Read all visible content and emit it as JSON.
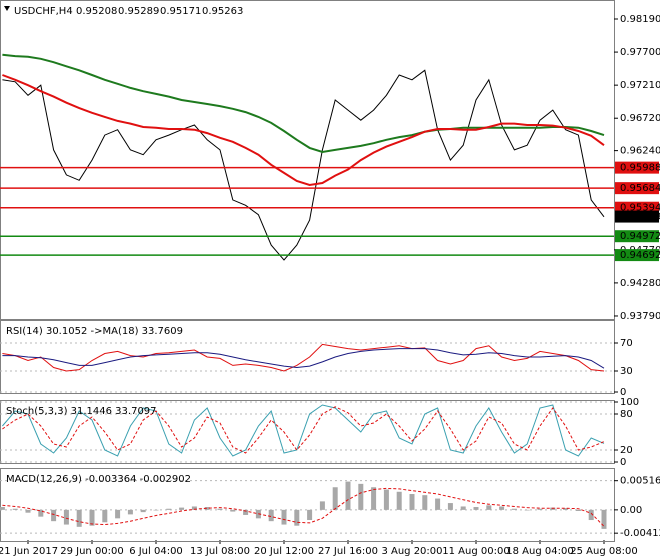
{
  "chart_data": [
    {
      "type": "line",
      "title": "USDCHF,H4",
      "ohlc": [
        0.95208,
        0.95289,
        0.95171,
        0.95263
      ],
      "categories": [
        null,
        null,
        "21 Jun 2017",
        null,
        null,
        null,
        null,
        "29 Jun 00:00",
        null,
        null,
        null,
        null,
        "6 Jul 04:00",
        null,
        null,
        null,
        null,
        "13 Jul 08:00",
        null,
        null,
        null,
        null,
        "20 Jul 12:00",
        null,
        null,
        null,
        null,
        "27 Jul 16:00",
        null,
        null,
        null,
        null,
        "3 Aug 20:00",
        null,
        null,
        null,
        null,
        "11 Aug 00:00",
        null,
        null,
        null,
        null,
        "18 Aug 04:00",
        null,
        null,
        null,
        null,
        "25 Aug 08:00"
      ],
      "ylim": [
        0.9376,
        0.98442
      ],
      "yticks": [
        {
          "value": 0.9819,
          "label": "0.98190"
        },
        {
          "value": 0.977,
          "label": "0.97700"
        },
        {
          "value": 0.9721,
          "label": "0.97210"
        },
        {
          "value": 0.9672,
          "label": "0.96720"
        },
        {
          "value": 0.9624,
          "label": "0.96240"
        },
        {
          "value": 0.9477,
          "label": "0.94770"
        },
        {
          "value": 0.9428,
          "label": "0.94280"
        },
        {
          "value": 0.9379,
          "label": "0.93790"
        }
      ],
      "series": [
        {
          "color": "#000000",
          "values": [
            0.9729,
            0.9726,
            0.9706,
            0.9721,
            0.9625,
            0.9588,
            0.958,
            0.961,
            0.9647,
            0.9655,
            0.9625,
            0.9618,
            0.964,
            0.9647,
            0.9655,
            0.9662,
            0.964,
            0.9625,
            0.9551,
            0.9543,
            0.9529,
            0.9484,
            0.9462,
            0.9484,
            0.9521,
            0.9625,
            0.9699,
            0.9684,
            0.9669,
            0.9684,
            0.9706,
            0.9736,
            0.9729,
            0.9743,
            0.9655,
            0.961,
            0.9632,
            0.9699,
            0.9729,
            0.9662,
            0.9625,
            0.9632,
            0.9669,
            0.9684,
            0.9655,
            0.9647,
            0.9551,
            0.9526
          ]
        },
        {
          "color": "#1e7a1e",
          "values": [
            0.9766,
            0.9764,
            0.9763,
            0.976,
            0.9755,
            0.9749,
            0.9743,
            0.9736,
            0.9729,
            0.9723,
            0.9717,
            0.9712,
            0.9708,
            0.9704,
            0.9699,
            0.9696,
            0.9693,
            0.969,
            0.9686,
            0.9681,
            0.9674,
            0.9665,
            0.9653,
            0.964,
            0.9628,
            0.9622,
            0.9625,
            0.9628,
            0.9631,
            0.9635,
            0.964,
            0.9644,
            0.9647,
            0.9652,
            0.9655,
            0.9656,
            0.9658,
            0.9658,
            0.9658,
            0.9658,
            0.9658,
            0.9658,
            0.9658,
            0.9659,
            0.9659,
            0.9658,
            0.9653,
            0.9647
          ]
        },
        {
          "color": "#e01010",
          "values": [
            0.9736,
            0.9729,
            0.9721,
            0.9712,
            0.9704,
            0.9695,
            0.9687,
            0.968,
            0.9674,
            0.9668,
            0.9664,
            0.9659,
            0.9658,
            0.9656,
            0.9656,
            0.9655,
            0.965,
            0.9643,
            0.9637,
            0.9628,
            0.9618,
            0.9603,
            0.9591,
            0.9579,
            0.9573,
            0.9576,
            0.9587,
            0.9596,
            0.961,
            0.9621,
            0.963,
            0.9637,
            0.9644,
            0.9652,
            0.9656,
            0.9656,
            0.9655,
            0.9655,
            0.9659,
            0.9664,
            0.9664,
            0.9662,
            0.9662,
            0.9661,
            0.9658,
            0.9653,
            0.9646,
            0.9632
          ]
        }
      ],
      "levels": [
        {
          "value": 0.95988,
          "color": "#e01010"
        },
        {
          "value": 0.95684,
          "color": "#e01010"
        },
        {
          "value": 0.95394,
          "color": "#e01010"
        },
        {
          "value": 0.94972,
          "color": "#138a13"
        },
        {
          "value": 0.94692,
          "color": "#138a13"
        }
      ]
    },
    {
      "type": "line",
      "title": "RSI(14) 30.1052  ->MA(18) 33.7609",
      "ylim": [
        0,
        100
      ],
      "yticks": [
        70,
        30,
        0
      ],
      "series": [
        {
          "color": "#e01010",
          "values": [
            55,
            52,
            45,
            50,
            35,
            30,
            32,
            45,
            55,
            58,
            52,
            50,
            55,
            56,
            58,
            60,
            50,
            48,
            38,
            40,
            38,
            35,
            30,
            38,
            50,
            68,
            65,
            62,
            60,
            62,
            64,
            66,
            62,
            63,
            45,
            40,
            45,
            62,
            66,
            50,
            45,
            48,
            58,
            55,
            52,
            45,
            32,
            30
          ]
        },
        {
          "color": "#1a1a80",
          "values": [
            52,
            52,
            50,
            49,
            46,
            42,
            38,
            38,
            42,
            46,
            50,
            52,
            53,
            54,
            55,
            56,
            56,
            54,
            50,
            46,
            43,
            40,
            37,
            35,
            37,
            43,
            50,
            55,
            58,
            60,
            61,
            62,
            62,
            62,
            60,
            56,
            53,
            54,
            56,
            55,
            52,
            50,
            50,
            51,
            52,
            50,
            45,
            34
          ]
        }
      ]
    },
    {
      "type": "line",
      "title": "Stoch(5,3,3) 31.1446 33.7097",
      "ylim": [
        0,
        100
      ],
      "yticks": [
        100,
        80,
        20,
        0
      ],
      "series": [
        {
          "color": "#3aa0b0",
          "values": [
            60,
            85,
            80,
            30,
            15,
            40,
            85,
            70,
            20,
            10,
            60,
            90,
            85,
            30,
            15,
            70,
            90,
            40,
            10,
            20,
            60,
            85,
            15,
            20,
            80,
            95,
            90,
            70,
            50,
            80,
            85,
            40,
            30,
            80,
            90,
            20,
            15,
            60,
            90,
            50,
            15,
            30,
            90,
            95,
            20,
            10,
            40,
            31
          ]
        },
        {
          "color": "#e01010",
          "dashed": true,
          "values": [
            55,
            70,
            80,
            60,
            30,
            25,
            60,
            75,
            50,
            20,
            30,
            70,
            85,
            60,
            25,
            40,
            75,
            65,
            25,
            15,
            40,
            70,
            50,
            20,
            45,
            80,
            92,
            82,
            60,
            65,
            80,
            60,
            35,
            55,
            85,
            55,
            20,
            35,
            75,
            65,
            30,
            20,
            60,
            90,
            60,
            20,
            25,
            34
          ]
        }
      ]
    },
    {
      "type": "line",
      "title": "MACD(12,26,9) -0.003364 -0.002902",
      "ylim": [
        -0.00533,
        0.00705
      ],
      "yticks": [
        0.00516,
        {
          "value": 0,
          "label": "0.00"
        },
        -0.004123
      ],
      "series": [
        {
          "color": "#a8a8a8",
          "bars": true,
          "values": [
            0.0005,
            0.0002,
            -0.0005,
            -0.0012,
            -0.002,
            -0.0026,
            -0.003,
            -0.0028,
            -0.0022,
            -0.0015,
            -0.0008,
            -0.0004,
            -0.0001,
            0.0002,
            0.0004,
            0.0006,
            0.0005,
            0.0002,
            -0.0003,
            -0.0009,
            -0.0015,
            -0.002,
            -0.0026,
            -0.0028,
            -0.0018,
            0.0015,
            0.004,
            0.005,
            0.0046,
            0.004,
            0.0036,
            0.0032,
            0.0028,
            0.0026,
            0.002,
            0.0012,
            0.0006,
            0.0005,
            0.0008,
            0.0006,
            0.0002,
            -0.0001,
            0.0002,
            0.0004,
            0.0003,
            -0.0002,
            -0.0018,
            -0.003364
          ]
        },
        {
          "color": "#e01010",
          "dashed": true,
          "values": [
            0.0008,
            0.0006,
            0.0003,
            -0.0002,
            -0.0008,
            -0.0015,
            -0.0021,
            -0.0025,
            -0.0026,
            -0.0024,
            -0.002,
            -0.0015,
            -0.001,
            -0.0006,
            -0.0002,
            0.0001,
            0.0003,
            0.0004,
            0.0002,
            -0.0002,
            -0.0007,
            -0.0012,
            -0.0017,
            -0.0022,
            -0.0023,
            -0.0015,
            0.0002,
            0.0018,
            0.003,
            0.0036,
            0.0038,
            0.0037,
            0.0034,
            0.0031,
            0.0028,
            0.0023,
            0.0018,
            0.0013,
            0.001,
            0.0008,
            0.0006,
            0.0004,
            0.0003,
            0.0003,
            0.0003,
            0.0002,
            -0.0006,
            -0.002902
          ]
        }
      ]
    }
  ]
}
